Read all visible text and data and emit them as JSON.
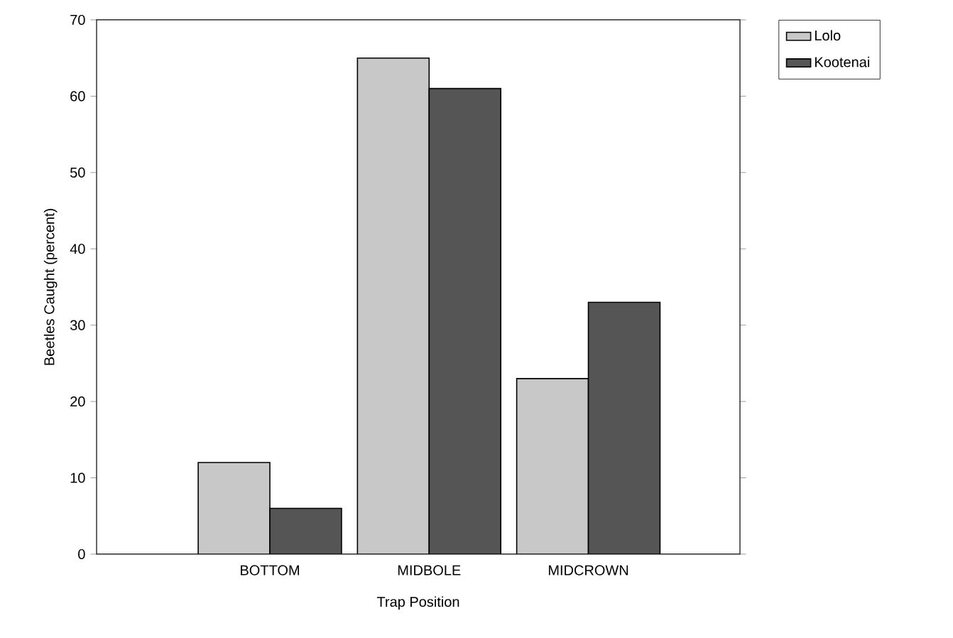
{
  "chart_data": {
    "type": "bar",
    "xlabel": "Trap Position",
    "ylabel": "Beetles Caught (percent)",
    "categories": [
      "BOTTOM",
      "MIDBOLE",
      "MIDCROWN"
    ],
    "series": [
      {
        "name": "Lolo",
        "color": "#c8c8c8",
        "values": [
          12,
          65,
          23
        ]
      },
      {
        "name": "Kootenai",
        "color": "#555555",
        "values": [
          6,
          61,
          33
        ]
      }
    ],
    "ylim": [
      0,
      70
    ],
    "yticks": [
      0,
      10,
      20,
      30,
      40,
      50,
      60,
      70
    ],
    "legend": "top right"
  }
}
